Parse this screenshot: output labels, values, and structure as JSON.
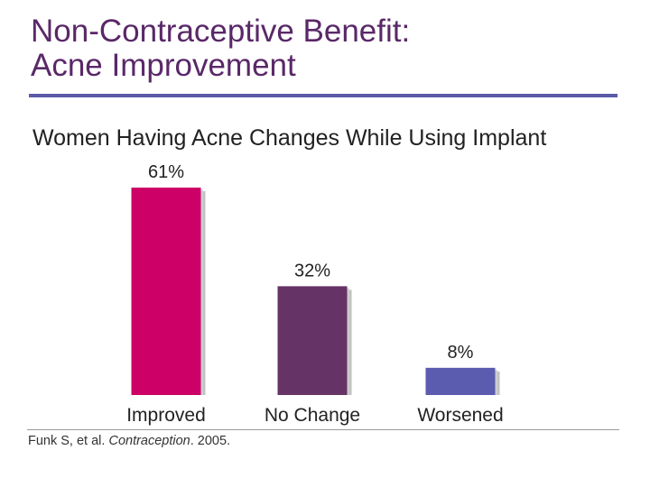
{
  "header": {
    "title_line1": "Non-Contraceptive Benefit:",
    "title_line2": "Acne Improvement"
  },
  "footer": {
    "source_authors": "Funk S, et al. ",
    "source_journal": "Contraception",
    "source_year": ". 2005."
  },
  "colors": {
    "title": "#5a2868",
    "rule": "#5b5ba8",
    "improved": "#cc0066",
    "no_change": "#663366",
    "worsened": "#5b5bb0"
  },
  "chart_data": {
    "type": "bar",
    "title": "Women Having Acne Changes While Using Implant",
    "categories": [
      "Improved",
      "No Change",
      "Worsened"
    ],
    "values": [
      61,
      32,
      8
    ],
    "value_labels": [
      "61%",
      "32%",
      "8%"
    ],
    "unit": "%",
    "ylim": [
      0,
      70
    ],
    "grid": false,
    "legend": "none"
  }
}
